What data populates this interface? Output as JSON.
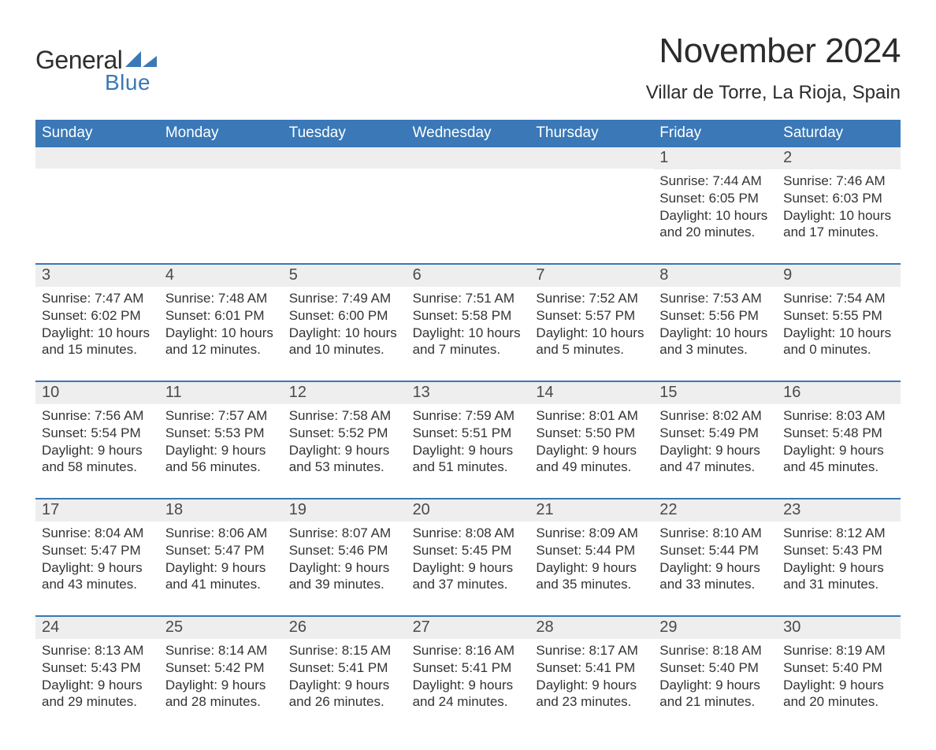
{
  "brand": {
    "word1": "General",
    "word2": "Blue",
    "word1_color": "#2f2f2f",
    "word2_color": "#3a78b7",
    "triangle_color": "#3a78b7"
  },
  "header": {
    "month_title": "November 2024",
    "location": "Villar de Torre, La Rioja, Spain",
    "title_fontsize": 44,
    "location_fontsize": 24,
    "text_color": "#2b2b2b"
  },
  "calendar": {
    "header_bg": "#3a78b7",
    "header_text_color": "#ffffff",
    "week_border_color": "#3a78b7",
    "daynum_bg": "#eeeeee",
    "body_text_color": "#333333",
    "body_fontsize": 17,
    "daynum_fontsize": 20,
    "dow_fontsize": 19,
    "days_of_week": [
      "Sunday",
      "Monday",
      "Tuesday",
      "Wednesday",
      "Thursday",
      "Friday",
      "Saturday"
    ],
    "weeks": [
      [
        null,
        null,
        null,
        null,
        null,
        {
          "n": "1",
          "sunrise": "Sunrise: 7:44 AM",
          "sunset": "Sunset: 6:05 PM",
          "day1": "Daylight: 10 hours",
          "day2": "and 20 minutes."
        },
        {
          "n": "2",
          "sunrise": "Sunrise: 7:46 AM",
          "sunset": "Sunset: 6:03 PM",
          "day1": "Daylight: 10 hours",
          "day2": "and 17 minutes."
        }
      ],
      [
        {
          "n": "3",
          "sunrise": "Sunrise: 7:47 AM",
          "sunset": "Sunset: 6:02 PM",
          "day1": "Daylight: 10 hours",
          "day2": "and 15 minutes."
        },
        {
          "n": "4",
          "sunrise": "Sunrise: 7:48 AM",
          "sunset": "Sunset: 6:01 PM",
          "day1": "Daylight: 10 hours",
          "day2": "and 12 minutes."
        },
        {
          "n": "5",
          "sunrise": "Sunrise: 7:49 AM",
          "sunset": "Sunset: 6:00 PM",
          "day1": "Daylight: 10 hours",
          "day2": "and 10 minutes."
        },
        {
          "n": "6",
          "sunrise": "Sunrise: 7:51 AM",
          "sunset": "Sunset: 5:58 PM",
          "day1": "Daylight: 10 hours",
          "day2": "and 7 minutes."
        },
        {
          "n": "7",
          "sunrise": "Sunrise: 7:52 AM",
          "sunset": "Sunset: 5:57 PM",
          "day1": "Daylight: 10 hours",
          "day2": "and 5 minutes."
        },
        {
          "n": "8",
          "sunrise": "Sunrise: 7:53 AM",
          "sunset": "Sunset: 5:56 PM",
          "day1": "Daylight: 10 hours",
          "day2": "and 3 minutes."
        },
        {
          "n": "9",
          "sunrise": "Sunrise: 7:54 AM",
          "sunset": "Sunset: 5:55 PM",
          "day1": "Daylight: 10 hours",
          "day2": "and 0 minutes."
        }
      ],
      [
        {
          "n": "10",
          "sunrise": "Sunrise: 7:56 AM",
          "sunset": "Sunset: 5:54 PM",
          "day1": "Daylight: 9 hours",
          "day2": "and 58 minutes."
        },
        {
          "n": "11",
          "sunrise": "Sunrise: 7:57 AM",
          "sunset": "Sunset: 5:53 PM",
          "day1": "Daylight: 9 hours",
          "day2": "and 56 minutes."
        },
        {
          "n": "12",
          "sunrise": "Sunrise: 7:58 AM",
          "sunset": "Sunset: 5:52 PM",
          "day1": "Daylight: 9 hours",
          "day2": "and 53 minutes."
        },
        {
          "n": "13",
          "sunrise": "Sunrise: 7:59 AM",
          "sunset": "Sunset: 5:51 PM",
          "day1": "Daylight: 9 hours",
          "day2": "and 51 minutes."
        },
        {
          "n": "14",
          "sunrise": "Sunrise: 8:01 AM",
          "sunset": "Sunset: 5:50 PM",
          "day1": "Daylight: 9 hours",
          "day2": "and 49 minutes."
        },
        {
          "n": "15",
          "sunrise": "Sunrise: 8:02 AM",
          "sunset": "Sunset: 5:49 PM",
          "day1": "Daylight: 9 hours",
          "day2": "and 47 minutes."
        },
        {
          "n": "16",
          "sunrise": "Sunrise: 8:03 AM",
          "sunset": "Sunset: 5:48 PM",
          "day1": "Daylight: 9 hours",
          "day2": "and 45 minutes."
        }
      ],
      [
        {
          "n": "17",
          "sunrise": "Sunrise: 8:04 AM",
          "sunset": "Sunset: 5:47 PM",
          "day1": "Daylight: 9 hours",
          "day2": "and 43 minutes."
        },
        {
          "n": "18",
          "sunrise": "Sunrise: 8:06 AM",
          "sunset": "Sunset: 5:47 PM",
          "day1": "Daylight: 9 hours",
          "day2": "and 41 minutes."
        },
        {
          "n": "19",
          "sunrise": "Sunrise: 8:07 AM",
          "sunset": "Sunset: 5:46 PM",
          "day1": "Daylight: 9 hours",
          "day2": "and 39 minutes."
        },
        {
          "n": "20",
          "sunrise": "Sunrise: 8:08 AM",
          "sunset": "Sunset: 5:45 PM",
          "day1": "Daylight: 9 hours",
          "day2": "and 37 minutes."
        },
        {
          "n": "21",
          "sunrise": "Sunrise: 8:09 AM",
          "sunset": "Sunset: 5:44 PM",
          "day1": "Daylight: 9 hours",
          "day2": "and 35 minutes."
        },
        {
          "n": "22",
          "sunrise": "Sunrise: 8:10 AM",
          "sunset": "Sunset: 5:44 PM",
          "day1": "Daylight: 9 hours",
          "day2": "and 33 minutes."
        },
        {
          "n": "23",
          "sunrise": "Sunrise: 8:12 AM",
          "sunset": "Sunset: 5:43 PM",
          "day1": "Daylight: 9 hours",
          "day2": "and 31 minutes."
        }
      ],
      [
        {
          "n": "24",
          "sunrise": "Sunrise: 8:13 AM",
          "sunset": "Sunset: 5:43 PM",
          "day1": "Daylight: 9 hours",
          "day2": "and 29 minutes."
        },
        {
          "n": "25",
          "sunrise": "Sunrise: 8:14 AM",
          "sunset": "Sunset: 5:42 PM",
          "day1": "Daylight: 9 hours",
          "day2": "and 28 minutes."
        },
        {
          "n": "26",
          "sunrise": "Sunrise: 8:15 AM",
          "sunset": "Sunset: 5:41 PM",
          "day1": "Daylight: 9 hours",
          "day2": "and 26 minutes."
        },
        {
          "n": "27",
          "sunrise": "Sunrise: 8:16 AM",
          "sunset": "Sunset: 5:41 PM",
          "day1": "Daylight: 9 hours",
          "day2": "and 24 minutes."
        },
        {
          "n": "28",
          "sunrise": "Sunrise: 8:17 AM",
          "sunset": "Sunset: 5:41 PM",
          "day1": "Daylight: 9 hours",
          "day2": "and 23 minutes."
        },
        {
          "n": "29",
          "sunrise": "Sunrise: 8:18 AM",
          "sunset": "Sunset: 5:40 PM",
          "day1": "Daylight: 9 hours",
          "day2": "and 21 minutes."
        },
        {
          "n": "30",
          "sunrise": "Sunrise: 8:19 AM",
          "sunset": "Sunset: 5:40 PM",
          "day1": "Daylight: 9 hours",
          "day2": "and 20 minutes."
        }
      ]
    ]
  }
}
